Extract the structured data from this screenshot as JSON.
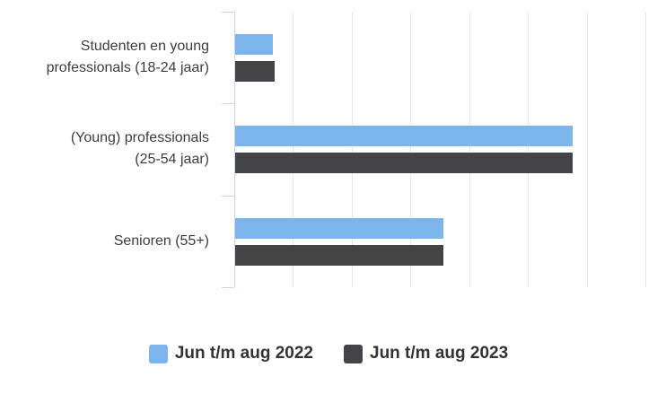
{
  "chart_data": {
    "type": "bar",
    "orientation": "horizontal",
    "title": "",
    "categories": [
      "Studenten en young professionals (18-24 jaar)",
      "(Young) professionals (25-54 jaar)",
      "Senioren (55+)"
    ],
    "category_label_lines": [
      [
        "Studenten en young",
        "professionals (18-24 jaar)"
      ],
      [
        "(Young) professionals",
        "(25-54 jaar)"
      ],
      [
        "Senioren (55+)"
      ]
    ],
    "series": [
      {
        "name": "Jun t/m aug 2022",
        "color": "#7cb5ec",
        "values": [
          0.64,
          5.75,
          3.55
        ]
      },
      {
        "name": "Jun t/m aug 2023",
        "color": "#434348",
        "values": [
          0.67,
          5.74,
          3.54
        ]
      }
    ],
    "xlim": [
      0,
      7
    ],
    "axis_unlabeled": true,
    "gridline_count": 7,
    "grid_on": true,
    "legend_position": "bottom-center"
  },
  "styles": {
    "series_colors": [
      "#7cb5ec",
      "#434348"
    ],
    "axis_line_color": "#ccd6eb",
    "gridline_color": "#e6e6e6",
    "category_label_color": "#3d3d3d",
    "legend_text_color": "#333333",
    "background_color": "#ffffff"
  }
}
